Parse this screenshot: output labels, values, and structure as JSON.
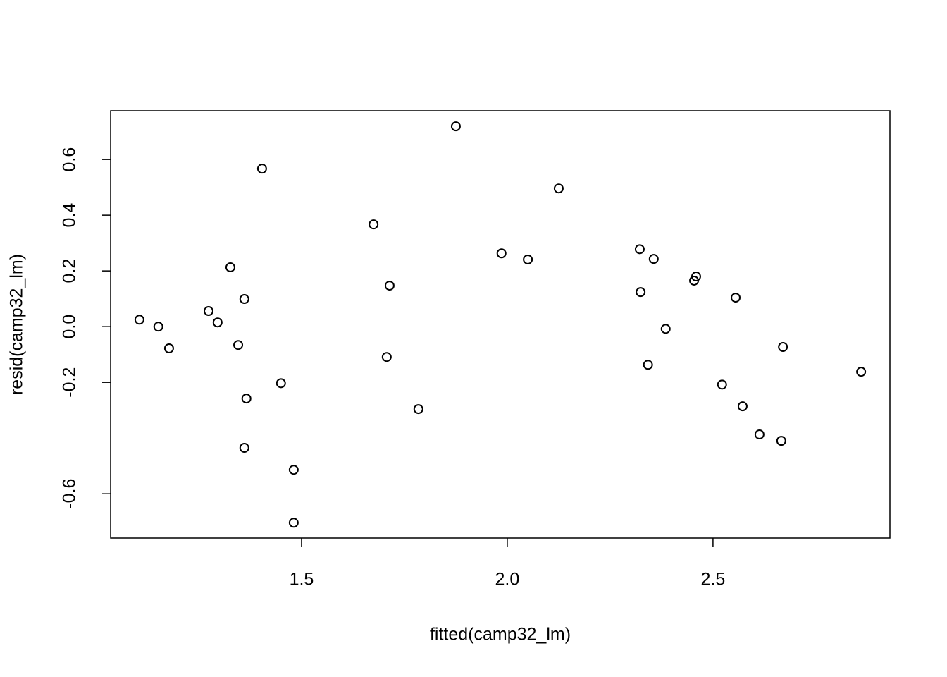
{
  "chart_data": {
    "type": "scatter",
    "xlabel": "fitted(camp32_lm)",
    "ylabel": "resid(camp32_lm)",
    "color": "#000000",
    "xlim": [
      1.036,
      2.93
    ],
    "ylim": [
      -0.759,
      0.775
    ],
    "xticks": [
      1.5,
      {
        "value": 2,
        "label": "2.0"
      },
      2.5
    ],
    "yticks": [
      -0.6,
      -0.2,
      {
        "value": 0,
        "label": "0.0"
      },
      0.2,
      0.4,
      0.6
    ],
    "x": [
      1.106,
      1.152,
      1.178,
      1.274,
      1.296,
      1.327,
      1.346,
      1.361,
      1.366,
      1.361,
      1.404,
      1.45,
      1.481,
      1.481,
      1.675,
      1.707,
      1.714,
      1.784,
      1.875,
      1.986,
      2.05,
      2.125,
      2.322,
      2.324,
      2.342,
      2.356,
      2.385,
      2.454,
      2.459,
      2.522,
      2.555,
      2.572,
      2.613,
      2.666,
      2.67,
      2.86
    ],
    "values": [
      0.025,
      0.0,
      -0.078,
      0.056,
      0.015,
      0.213,
      -0.066,
      0.099,
      -0.258,
      -0.435,
      0.567,
      -0.203,
      -0.514,
      -0.704,
      0.367,
      -0.109,
      0.147,
      -0.296,
      0.719,
      0.263,
      0.241,
      0.496,
      0.278,
      0.124,
      -0.137,
      0.243,
      -0.008,
      0.165,
      0.18,
      -0.208,
      0.104,
      -0.286,
      -0.387,
      -0.41,
      -0.073,
      -0.162
    ]
  }
}
